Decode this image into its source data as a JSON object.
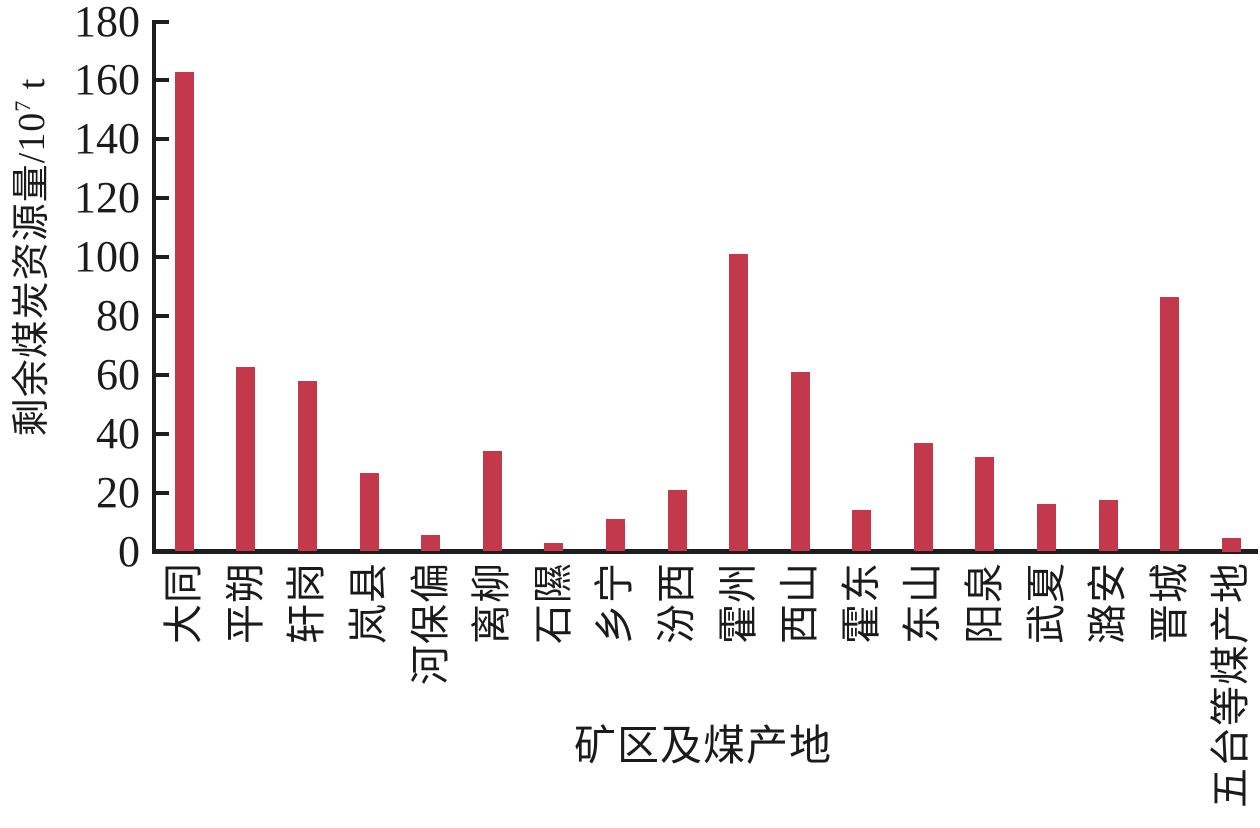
{
  "chart_data": {
    "type": "bar",
    "title": "",
    "xlabel": "矿区及煤产地",
    "ylabel": "剩余煤炭资源量/10⁷ t",
    "ylabel_rich": {
      "prefix": "剩余煤炭资源量/10",
      "sup": "7",
      "suffix": " t"
    },
    "categories": [
      "大同",
      "平朔",
      "轩岗",
      "岚县",
      "河保偏",
      "离柳",
      "石隰",
      "乡宁",
      "汾西",
      "霍州",
      "西山",
      "霍东",
      "东山",
      "阳泉",
      "武夏",
      "潞安",
      "晋城",
      "五台等煤产地"
    ],
    "values": [
      163,
      62.5,
      58,
      26.5,
      5.5,
      34,
      3,
      11,
      21,
      101,
      61,
      14,
      37,
      32,
      16,
      17.5,
      86.5,
      4.5
    ],
    "ylim": [
      0,
      180
    ],
    "yticks": [
      0,
      20,
      40,
      60,
      80,
      100,
      120,
      140,
      160,
      180
    ],
    "grid": false,
    "legend": null,
    "bar_color": "#c4384c",
    "axis_color": "#1e1e1e",
    "text_color": "#1b1b1b"
  }
}
